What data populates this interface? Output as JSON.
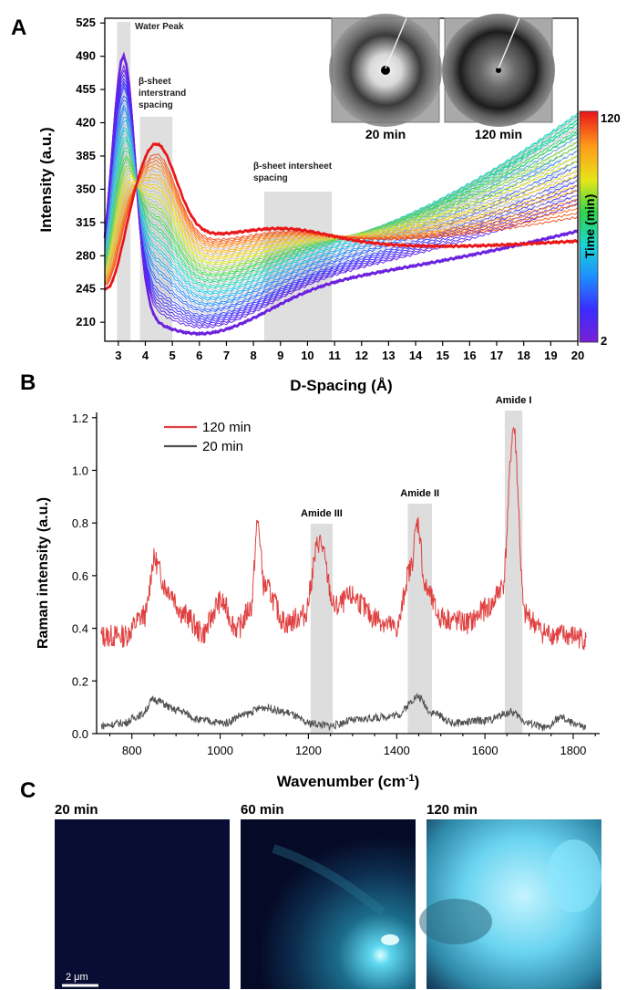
{
  "panels": {
    "A": {
      "letter": "A"
    },
    "B": {
      "letter": "B"
    },
    "C": {
      "letter": "C"
    }
  },
  "chart_data": [
    {
      "type": "line",
      "panel": "A",
      "xlabel": "D-Spacing (Å)",
      "ylabel": "Intensity (a.u.)",
      "xlim": [
        2.5,
        20
      ],
      "ylim": [
        190,
        530
      ],
      "x_ticks": [
        3,
        4,
        5,
        6,
        7,
        8,
        9,
        10,
        11,
        12,
        13,
        14,
        15,
        16,
        17,
        18,
        19,
        20
      ],
      "y_ticks": [
        210,
        245,
        280,
        315,
        350,
        385,
        420,
        455,
        490,
        525
      ],
      "grid": false,
      "colorbar": {
        "label": "Time (min)",
        "min": 2,
        "max": 120,
        "colors": [
          "#7a1fd6",
          "#3a2cff",
          "#1f8cff",
          "#19d6d6",
          "#2fd64a",
          "#e6e619",
          "#ff9a1a",
          "#e8141a"
        ]
      },
      "shaded_regions": [
        {
          "x": [
            2.95,
            3.45
          ],
          "label": "Water Peak"
        },
        {
          "x": [
            3.8,
            5.0
          ],
          "label": "β-sheet interstrand spacing",
          "label_lines": [
            "β-sheet",
            "interstrand",
            "spacing"
          ]
        },
        {
          "x": [
            8.4,
            10.9
          ],
          "label": "β-sheet intersheet spacing",
          "label_lines": [
            "β-sheet intersheet",
            "spacing"
          ]
        }
      ],
      "series_2min": {
        "peak_x": 3.2,
        "peak_y": 515,
        "at_4": 375,
        "min_x": 6.0,
        "min_y": 198,
        "at_20": 290
      },
      "series_120min": {
        "at_3": 240,
        "peak_x": 4.4,
        "peak_y": 398,
        "at_6_5": 300,
        "bump_x": 9.2,
        "bump_y": 312,
        "at_20": 290
      },
      "insets": [
        {
          "label": "20 min"
        },
        {
          "label": "120 min"
        }
      ]
    },
    {
      "type": "line",
      "panel": "B",
      "xlabel": "Wavenumber (cm⁻¹)",
      "xlabel_main": "Wavenumber (cm",
      "xlabel_sup": "-1",
      "xlabel_end": ")",
      "ylabel": "Raman intensity (a.u.)",
      "xlim": [
        720,
        1860
      ],
      "ylim": [
        0,
        1.22
      ],
      "x_ticks": [
        800,
        1000,
        1200,
        1400,
        1600,
        1800
      ],
      "y_ticks": [
        "0.0",
        "0.2",
        "0.4",
        "0.6",
        "0.8",
        "1.0",
        "1.2"
      ],
      "grid": false,
      "legend_position": "top-left",
      "series": [
        {
          "name": "120 min",
          "color": "#e04040",
          "points": [
            [
              730,
              0.37
            ],
            [
              780,
              0.37
            ],
            [
              830,
              0.45
            ],
            [
              850,
              0.66
            ],
            [
              880,
              0.55
            ],
            [
              920,
              0.45
            ],
            [
              960,
              0.38
            ],
            [
              1000,
              0.5
            ],
            [
              1040,
              0.4
            ],
            [
              1070,
              0.48
            ],
            [
              1085,
              0.8
            ],
            [
              1100,
              0.56
            ],
            [
              1150,
              0.42
            ],
            [
              1190,
              0.45
            ],
            [
              1225,
              0.73
            ],
            [
              1260,
              0.48
            ],
            [
              1300,
              0.52
            ],
            [
              1350,
              0.44
            ],
            [
              1400,
              0.4
            ],
            [
              1430,
              0.62
            ],
            [
              1448,
              0.8
            ],
            [
              1465,
              0.55
            ],
            [
              1500,
              0.44
            ],
            [
              1560,
              0.42
            ],
            [
              1610,
              0.48
            ],
            [
              1640,
              0.56
            ],
            [
              1665,
              1.16
            ],
            [
              1690,
              0.45
            ],
            [
              1740,
              0.38
            ],
            [
              1800,
              0.37
            ],
            [
              1830,
              0.36
            ]
          ]
        },
        {
          "name": "20 min",
          "color": "#505050",
          "points": [
            [
              730,
              0.03
            ],
            [
              780,
              0.04
            ],
            [
              820,
              0.07
            ],
            [
              850,
              0.13
            ],
            [
              900,
              0.09
            ],
            [
              960,
              0.05
            ],
            [
              1010,
              0.04
            ],
            [
              1050,
              0.07
            ],
            [
              1100,
              0.1
            ],
            [
              1150,
              0.08
            ],
            [
              1200,
              0.04
            ],
            [
              1250,
              0.03
            ],
            [
              1300,
              0.05
            ],
            [
              1350,
              0.06
            ],
            [
              1400,
              0.07
            ],
            [
              1448,
              0.14
            ],
            [
              1480,
              0.08
            ],
            [
              1530,
              0.04
            ],
            [
              1600,
              0.05
            ],
            [
              1660,
              0.08
            ],
            [
              1700,
              0.04
            ],
            [
              1740,
              0.02
            ],
            [
              1770,
              0.06
            ],
            [
              1800,
              0.04
            ],
            [
              1830,
              0.02
            ]
          ]
        }
      ],
      "shaded_regions": [
        {
          "x": [
            1205,
            1255
          ],
          "label": "Amide III"
        },
        {
          "x": [
            1425,
            1480
          ],
          "label": "Amide II"
        },
        {
          "x": [
            1645,
            1685
          ],
          "label": "Amide I"
        }
      ]
    }
  ],
  "micrographs": [
    {
      "label": "20 min"
    },
    {
      "label": "60 min"
    },
    {
      "label": "120 min"
    }
  ],
  "scale_bar": {
    "label": "2 μm"
  }
}
